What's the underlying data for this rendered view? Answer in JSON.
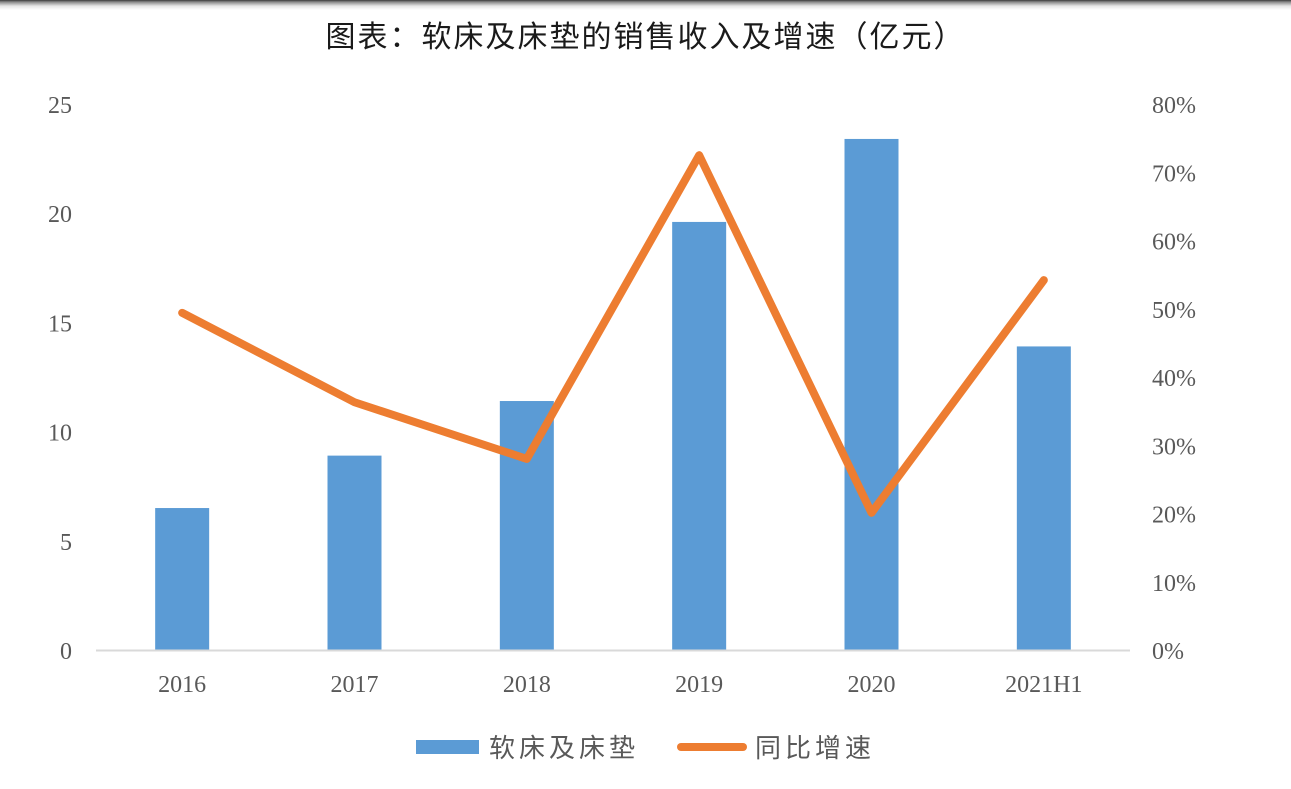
{
  "title": "图表：软床及床垫的销售收入及增速（亿元）",
  "legend": {
    "bar_label": "软床及床垫",
    "line_label": "同比增速"
  },
  "colors": {
    "bar": "#5b9bd5",
    "line": "#ed7d31",
    "axis": "#d9d9d9",
    "tick_text": "#595959"
  },
  "axes": {
    "left_ticks": [
      "0",
      "5",
      "10",
      "15",
      "20",
      "25"
    ],
    "right_ticks": [
      "0%",
      "10%",
      "20%",
      "30%",
      "40%",
      "50%",
      "60%",
      "70%",
      "80%"
    ],
    "categories": [
      "2016",
      "2017",
      "2018",
      "2019",
      "2020",
      "2021H1"
    ]
  },
  "chart_data": {
    "type": "bar+line",
    "title": "图表：软床及床垫的销售收入及增速（亿元）",
    "categories": [
      "2016",
      "2017",
      "2018",
      "2019",
      "2020",
      "2021H1"
    ],
    "series": [
      {
        "name": "软床及床垫",
        "type": "bar",
        "axis": "left",
        "values": [
          6.5,
          8.9,
          11.4,
          19.6,
          23.4,
          13.9
        ]
      },
      {
        "name": "同比增速",
        "type": "line",
        "axis": "right",
        "values": [
          49.4,
          36.3,
          28.0,
          72.5,
          20.1,
          54.2
        ],
        "unit": "%"
      }
    ],
    "xlabel": "",
    "ylabel": "",
    "ylim": [
      0,
      25
    ],
    "y2lim": [
      0,
      80
    ],
    "yticks": [
      0,
      5,
      10,
      15,
      20,
      25
    ],
    "y2ticks": [
      0,
      10,
      20,
      30,
      40,
      50,
      60,
      70,
      80
    ],
    "grid": false,
    "legend_position": "bottom"
  }
}
